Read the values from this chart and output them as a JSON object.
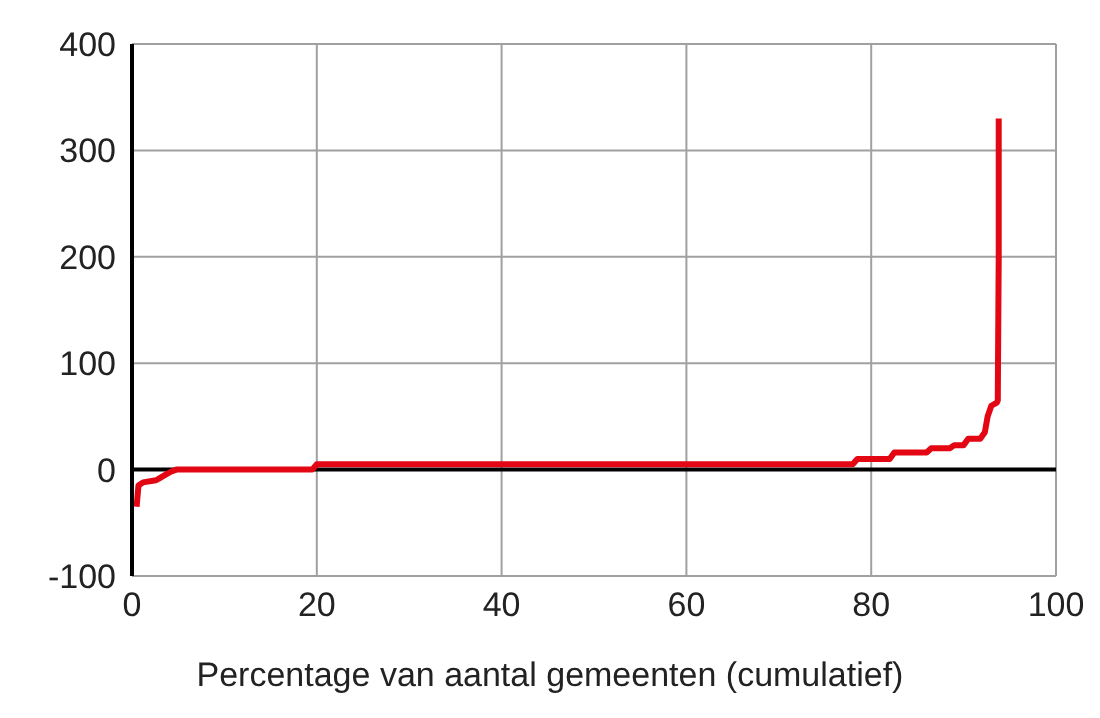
{
  "chart_data": {
    "type": "line",
    "xlabel": "Percentage van aantal gemeenten (cumulatief)",
    "x": [
      0.5,
      0.7,
      1.2,
      2.6,
      3.0,
      3.6,
      4.2,
      4.8,
      19.5,
      20,
      78,
      78.5,
      82,
      82.5,
      86,
      86.5,
      88.5,
      89,
      90,
      90.5,
      91.8,
      92.3,
      92.6,
      93,
      93.6,
      93.7,
      93.8,
      93.8
    ],
    "series": [
      {
        "color": "#e30613",
        "values": [
          -35,
          -15,
          -12,
          -10,
          -8,
          -5,
          -2,
          0,
          0,
          5,
          5,
          10,
          10,
          16,
          16,
          20,
          20,
          23,
          23,
          29,
          29,
          35,
          50,
          60,
          63,
          65,
          200,
          330
        ]
      }
    ],
    "xlim": [
      0,
      100
    ],
    "xticks": [
      0,
      20,
      40,
      60,
      80,
      100
    ],
    "ylim": [
      -100,
      400
    ],
    "yticks": [
      -100,
      0,
      100,
      200,
      300,
      400
    ],
    "grid": true,
    "marker": "none",
    "line_style": "solid"
  }
}
